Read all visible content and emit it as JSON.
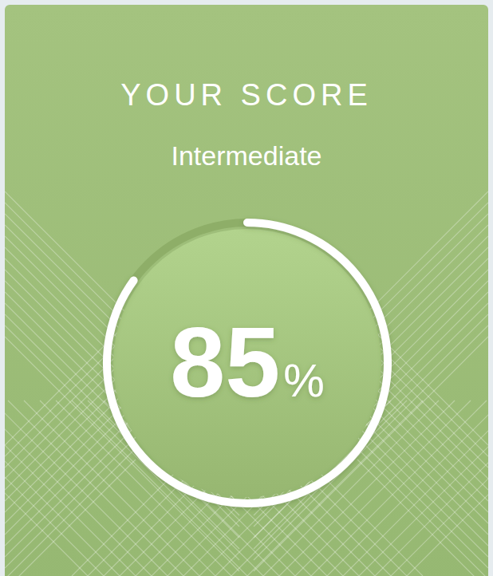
{
  "chart_data": {
    "type": "gauge",
    "title": "YOUR SCORE",
    "subtitle": "Intermediate",
    "values": [
      85
    ],
    "value_labels": [
      "85%"
    ],
    "ylim": [
      0,
      100
    ],
    "data_labels": true
  }
}
